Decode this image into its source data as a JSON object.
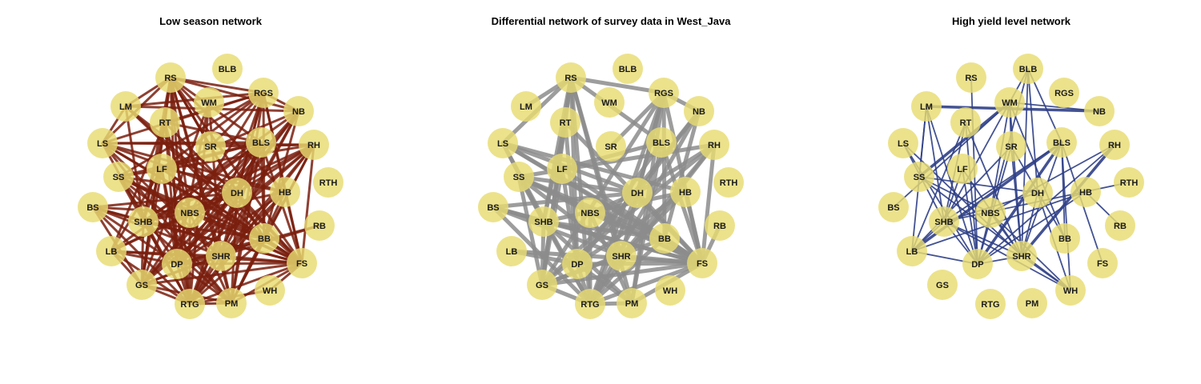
{
  "colors": {
    "node_fill": "#e8dc72",
    "low_edge": "#7a1f0e",
    "diff_edge": "#8c8c8c",
    "high_edge": "#2f3f86"
  },
  "panels": [
    {
      "title": "Low season network",
      "edge_color_key": "low_edge"
    },
    {
      "title": "Differential network of survey data in West_Java",
      "edge_color_key": "diff_edge"
    },
    {
      "title": "High yield level network",
      "edge_color_key": "high_edge"
    }
  ],
  "nodes": [
    "RS",
    "BLB",
    "RGS",
    "LM",
    "WM",
    "NB",
    "RT",
    "LS",
    "SR",
    "BLS",
    "RH",
    "SS",
    "LF",
    "RTH",
    "BS",
    "DH",
    "HB",
    "SHB",
    "NBS",
    "RB",
    "LB",
    "BB",
    "DP",
    "SHR",
    "FS",
    "GS",
    "RTG",
    "PM",
    "WH"
  ],
  "edges_low": [
    [
      "RS",
      "RGS"
    ],
    [
      "RS",
      "NB"
    ],
    [
      "RS",
      "LM"
    ],
    [
      "RS",
      "RT"
    ],
    [
      "RS",
      "LS"
    ],
    [
      "RS",
      "SR"
    ],
    [
      "RS",
      "BLS"
    ],
    [
      "RS",
      "DH"
    ],
    [
      "RS",
      "SHB"
    ],
    [
      "RS",
      "NBS"
    ],
    [
      "RS",
      "DP"
    ],
    [
      "RS",
      "SHR"
    ],
    [
      "RS",
      "GS"
    ],
    [
      "RS",
      "RTG"
    ],
    [
      "RS",
      "PM"
    ],
    [
      "RS",
      "BB"
    ],
    [
      "RS",
      "FS"
    ],
    [
      "RS",
      "HB"
    ],
    [
      "RGS",
      "LM"
    ],
    [
      "RGS",
      "RT"
    ],
    [
      "RGS",
      "LS"
    ],
    [
      "RGS",
      "SR"
    ],
    [
      "RGS",
      "SS"
    ],
    [
      "RGS",
      "LF"
    ],
    [
      "RGS",
      "DH"
    ],
    [
      "RGS",
      "HB"
    ],
    [
      "RGS",
      "NBS"
    ],
    [
      "RGS",
      "BB"
    ],
    [
      "RGS",
      "SHR"
    ],
    [
      "RGS",
      "FS"
    ],
    [
      "RGS",
      "RTG"
    ],
    [
      "RGS",
      "PM"
    ],
    [
      "RGS",
      "NB"
    ],
    [
      "NB",
      "LF"
    ],
    [
      "NB",
      "DH"
    ],
    [
      "NB",
      "SHR"
    ],
    [
      "NB",
      "GS"
    ],
    [
      "NB",
      "RTG"
    ],
    [
      "NB",
      "BB"
    ],
    [
      "NB",
      "DP"
    ],
    [
      "NB",
      "SHB"
    ],
    [
      "RH",
      "LS"
    ],
    [
      "RH",
      "SS"
    ],
    [
      "RH",
      "SR"
    ],
    [
      "RH",
      "DH"
    ],
    [
      "RH",
      "NBS"
    ],
    [
      "RH",
      "SHR"
    ],
    [
      "RH",
      "DP"
    ],
    [
      "RH",
      "RTG"
    ],
    [
      "RH",
      "PM"
    ],
    [
      "RH",
      "FS"
    ],
    [
      "RH",
      "BB"
    ],
    [
      "RH",
      "GS"
    ],
    [
      "RH",
      "SHB"
    ],
    [
      "LM",
      "DH"
    ],
    [
      "LM",
      "SHB"
    ],
    [
      "LM",
      "FS"
    ],
    [
      "LM",
      "BB"
    ],
    [
      "LM",
      "LS"
    ],
    [
      "LM",
      "NB"
    ],
    [
      "LS",
      "BLS"
    ],
    [
      "LS",
      "HB"
    ],
    [
      "LS",
      "FS"
    ],
    [
      "LS",
      "BB"
    ],
    [
      "LS",
      "SHR"
    ],
    [
      "LS",
      "PM"
    ],
    [
      "LS",
      "DH"
    ],
    [
      "LS",
      "RTG"
    ],
    [
      "RT",
      "SHB"
    ],
    [
      "RT",
      "DP"
    ],
    [
      "RT",
      "NBS"
    ],
    [
      "RT",
      "GS"
    ],
    [
      "RT",
      "BLS"
    ],
    [
      "RT",
      "FS"
    ],
    [
      "RT",
      "LB"
    ],
    [
      "RT",
      "RTG"
    ],
    [
      "SS",
      "DH"
    ],
    [
      "SS",
      "NBS"
    ],
    [
      "SS",
      "DP"
    ],
    [
      "SS",
      "RTG"
    ],
    [
      "SS",
      "PM"
    ],
    [
      "SS",
      "FS"
    ],
    [
      "SS",
      "BB"
    ],
    [
      "SS",
      "BLS"
    ],
    [
      "SS",
      "SHR"
    ],
    [
      "LF",
      "SHB"
    ],
    [
      "LF",
      "DP"
    ],
    [
      "LF",
      "GS"
    ],
    [
      "LF",
      "RTG"
    ],
    [
      "LF",
      "FS"
    ],
    [
      "LF",
      "BB"
    ],
    [
      "LF",
      "HB"
    ],
    [
      "LF",
      "BLS"
    ],
    [
      "LF",
      "LB"
    ],
    [
      "BS",
      "SHB"
    ],
    [
      "BS",
      "DP"
    ],
    [
      "BS",
      "FS"
    ],
    [
      "BS",
      "DH"
    ],
    [
      "BS",
      "NBS"
    ],
    [
      "BS",
      "SHR"
    ],
    [
      "BS",
      "GS"
    ],
    [
      "BS",
      "RTG"
    ],
    [
      "SHB",
      "DH"
    ],
    [
      "SHB",
      "HB"
    ],
    [
      "SHB",
      "BB"
    ],
    [
      "SHB",
      "FS"
    ],
    [
      "SHB",
      "RTG"
    ],
    [
      "SHB",
      "PM"
    ],
    [
      "SHB",
      "BLS"
    ],
    [
      "SHB",
      "GS"
    ],
    [
      "NBS",
      "DH"
    ],
    [
      "NBS",
      "BB"
    ],
    [
      "NBS",
      "FS"
    ],
    [
      "NBS",
      "GS"
    ],
    [
      "NBS",
      "LB"
    ],
    [
      "NBS",
      "PM"
    ],
    [
      "NBS",
      "BLS"
    ],
    [
      "NBS",
      "RTG"
    ],
    [
      "LB",
      "DP"
    ],
    [
      "LB",
      "SHR"
    ],
    [
      "LB",
      "FS"
    ],
    [
      "LB",
      "DH"
    ],
    [
      "LB",
      "GS"
    ],
    [
      "LB",
      "RTG"
    ],
    [
      "LB",
      "BLS"
    ],
    [
      "DP",
      "DH"
    ],
    [
      "DP",
      "HB"
    ],
    [
      "DP",
      "BB"
    ],
    [
      "DP",
      "FS"
    ],
    [
      "DP",
      "PM"
    ],
    [
      "DP",
      "BLS"
    ],
    [
      "DP",
      "RTG"
    ],
    [
      "DP",
      "SHR"
    ],
    [
      "SHR",
      "BLS"
    ],
    [
      "SHR",
      "HB"
    ],
    [
      "SHR",
      "FS"
    ],
    [
      "SHR",
      "RTG"
    ],
    [
      "SHR",
      "PM"
    ],
    [
      "SHR",
      "GS"
    ],
    [
      "GS",
      "DH"
    ],
    [
      "GS",
      "BB"
    ],
    [
      "GS",
      "FS"
    ],
    [
      "GS",
      "PM"
    ],
    [
      "GS",
      "RTG"
    ],
    [
      "GS",
      "BLS"
    ],
    [
      "RTG",
      "DH"
    ],
    [
      "RTG",
      "HB"
    ],
    [
      "RTG",
      "BB"
    ],
    [
      "RTG",
      "FS"
    ],
    [
      "RTG",
      "PM"
    ],
    [
      "RTG",
      "WH"
    ],
    [
      "RTG",
      "BLS"
    ],
    [
      "PM",
      "DH"
    ],
    [
      "PM",
      "BB"
    ],
    [
      "PM",
      "FS"
    ],
    [
      "PM",
      "BLS"
    ],
    [
      "PM",
      "HB"
    ],
    [
      "BLS",
      "FS"
    ],
    [
      "BLS",
      "BB"
    ],
    [
      "BLS",
      "DH"
    ],
    [
      "DH",
      "FS"
    ],
    [
      "DH",
      "BB"
    ],
    [
      "HB",
      "FS"
    ],
    [
      "BB",
      "FS"
    ],
    [
      "WH",
      "FS"
    ],
    [
      "RB",
      "SHR"
    ],
    [
      "RB",
      "DP"
    ],
    [
      "WM",
      "SHR"
    ],
    [
      "WM",
      "DP"
    ],
    [
      "WM",
      "RTG"
    ],
    [
      "WM",
      "GS"
    ]
  ],
  "edges_diff": [
    [
      "RS",
      "RGS"
    ],
    [
      "RS",
      "RT"
    ],
    [
      "RS",
      "LS"
    ],
    [
      "RS",
      "BLS"
    ],
    [
      "RS",
      "SHR"
    ],
    [
      "RS",
      "GS"
    ],
    [
      "RS",
      "RTG"
    ],
    [
      "RS",
      "PM"
    ],
    [
      "RS",
      "DP"
    ],
    [
      "RS",
      "SHB"
    ],
    [
      "RGS",
      "NB"
    ],
    [
      "RGS",
      "SR"
    ],
    [
      "RGS",
      "DH"
    ],
    [
      "RGS",
      "BB"
    ],
    [
      "RGS",
      "SHR"
    ],
    [
      "RGS",
      "RTG"
    ],
    [
      "RGS",
      "PM"
    ],
    [
      "RGS",
      "FS"
    ],
    [
      "RGS",
      "GS"
    ],
    [
      "NB",
      "DH"
    ],
    [
      "NB",
      "RTG"
    ],
    [
      "NB",
      "BB"
    ],
    [
      "NB",
      "DP"
    ],
    [
      "RH",
      "SS"
    ],
    [
      "RH",
      "DH"
    ],
    [
      "RH",
      "SHR"
    ],
    [
      "RH",
      "RTG"
    ],
    [
      "RH",
      "FS"
    ],
    [
      "RH",
      "GS"
    ],
    [
      "LM",
      "RS"
    ],
    [
      "LS",
      "HB"
    ],
    [
      "LS",
      "FS"
    ],
    [
      "LS",
      "BB"
    ],
    [
      "LS",
      "DH"
    ],
    [
      "LS",
      "RTG"
    ],
    [
      "LS",
      "SHB"
    ],
    [
      "RT",
      "SHB"
    ],
    [
      "RT",
      "DP"
    ],
    [
      "RT",
      "GS"
    ],
    [
      "RT",
      "FS"
    ],
    [
      "SS",
      "DH"
    ],
    [
      "SS",
      "NBS"
    ],
    [
      "SS",
      "RTG"
    ],
    [
      "SS",
      "FS"
    ],
    [
      "SS",
      "BB"
    ],
    [
      "SS",
      "SHR"
    ],
    [
      "SS",
      "GS"
    ],
    [
      "LF",
      "DP"
    ],
    [
      "LF",
      "GS"
    ],
    [
      "LF",
      "FS"
    ],
    [
      "LF",
      "BLS"
    ],
    [
      "BS",
      "SHB"
    ],
    [
      "BS",
      "FS"
    ],
    [
      "BS",
      "DH"
    ],
    [
      "BS",
      "SHR"
    ],
    [
      "BS",
      "RTG"
    ],
    [
      "SHB",
      "HB"
    ],
    [
      "SHB",
      "BB"
    ],
    [
      "SHB",
      "FS"
    ],
    [
      "SHB",
      "PM"
    ],
    [
      "SHB",
      "GS"
    ],
    [
      "NBS",
      "DH"
    ],
    [
      "NBS",
      "BB"
    ],
    [
      "NBS",
      "FS"
    ],
    [
      "NBS",
      "RTG"
    ],
    [
      "NBS",
      "PM"
    ],
    [
      "LB",
      "DP"
    ],
    [
      "LB",
      "FS"
    ],
    [
      "DP",
      "HB"
    ],
    [
      "DP",
      "FS"
    ],
    [
      "DP",
      "PM"
    ],
    [
      "DP",
      "BLS"
    ],
    [
      "DP",
      "RTG"
    ],
    [
      "SHR",
      "HB"
    ],
    [
      "SHR",
      "FS"
    ],
    [
      "SHR",
      "RTG"
    ],
    [
      "SHR",
      "GS"
    ],
    [
      "GS",
      "DH"
    ],
    [
      "GS",
      "BB"
    ],
    [
      "GS",
      "FS"
    ],
    [
      "GS",
      "RTG"
    ],
    [
      "RTG",
      "DH"
    ],
    [
      "RTG",
      "BB"
    ],
    [
      "RTG",
      "FS"
    ],
    [
      "RTG",
      "PM"
    ],
    [
      "PM",
      "FS"
    ],
    [
      "PM",
      "BLS"
    ],
    [
      "BLS",
      "FS"
    ],
    [
      "DH",
      "FS"
    ],
    [
      "HB",
      "FS"
    ],
    [
      "BB",
      "FS"
    ],
    [
      "RB",
      "FS"
    ]
  ],
  "edges_high": [
    [
      "LM",
      "NB"
    ],
    [
      "LM",
      "SS"
    ],
    [
      "LM",
      "LB"
    ],
    [
      "LM",
      "SHB"
    ],
    [
      "LM",
      "DP"
    ],
    [
      "WM",
      "SS"
    ],
    [
      "WM",
      "BS"
    ],
    [
      "WM",
      "SHB"
    ],
    [
      "WM",
      "NBS"
    ],
    [
      "WM",
      "BB"
    ],
    [
      "WM",
      "SHR"
    ],
    [
      "WM",
      "SR"
    ],
    [
      "BLB",
      "WM"
    ],
    [
      "BLB",
      "BLS"
    ],
    [
      "BLB",
      "SHR"
    ],
    [
      "BLB",
      "DH"
    ],
    [
      "BLB",
      "NBS"
    ],
    [
      "RS",
      "DP"
    ],
    [
      "RT",
      "SHB"
    ],
    [
      "RT",
      "LB"
    ],
    [
      "RT",
      "SHR"
    ],
    [
      "RT",
      "DP"
    ],
    [
      "LS",
      "SHB"
    ],
    [
      "LS",
      "DP"
    ],
    [
      "LS",
      "SHR"
    ],
    [
      "SR",
      "LB"
    ],
    [
      "SR",
      "DP"
    ],
    [
      "SR",
      "BB"
    ],
    [
      "SR",
      "SHR"
    ],
    [
      "BLS",
      "LB"
    ],
    [
      "BLS",
      "DP"
    ],
    [
      "BLS",
      "SHR"
    ],
    [
      "BLS",
      "FS"
    ],
    [
      "BLS",
      "BB"
    ],
    [
      "BLS",
      "SHB"
    ],
    [
      "BLS",
      "WH"
    ],
    [
      "RH",
      "DP"
    ],
    [
      "RH",
      "SHR"
    ],
    [
      "RH",
      "NBS"
    ],
    [
      "SS",
      "DH"
    ],
    [
      "SS",
      "NBS"
    ],
    [
      "SS",
      "WH"
    ],
    [
      "LF",
      "SHR"
    ],
    [
      "LF",
      "SHB"
    ],
    [
      "LF",
      "DP"
    ],
    [
      "DH",
      "SHB"
    ],
    [
      "DH",
      "WH"
    ],
    [
      "DH",
      "SHR"
    ],
    [
      "HB",
      "LB"
    ],
    [
      "HB",
      "RB"
    ],
    [
      "HB",
      "DP"
    ],
    [
      "RTH",
      "SHB"
    ],
    [
      "NBS",
      "SHR"
    ],
    [
      "NBS",
      "WH"
    ],
    [
      "NBS",
      "DP"
    ],
    [
      "SHB",
      "LB"
    ],
    [
      "SHB",
      "DP"
    ],
    [
      "SHB",
      "WH"
    ],
    [
      "SHB",
      "SHR"
    ],
    [
      "LB",
      "DP"
    ],
    [
      "DP",
      "SHR"
    ],
    [
      "SHR",
      "WH"
    ],
    [
      "NB",
      "WM"
    ]
  ]
}
